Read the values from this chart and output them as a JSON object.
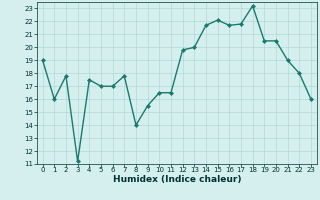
{
  "x": [
    0,
    1,
    2,
    3,
    4,
    5,
    6,
    7,
    8,
    9,
    10,
    11,
    12,
    13,
    14,
    15,
    16,
    17,
    18,
    19,
    20,
    21,
    22,
    23
  ],
  "y": [
    19,
    16,
    17.8,
    11.2,
    17.5,
    17,
    17,
    17.8,
    14,
    15.5,
    16.5,
    16.5,
    19.8,
    20.0,
    21.7,
    22.1,
    21.7,
    21.8,
    23.2,
    20.5,
    20.5,
    19,
    18,
    16
  ],
  "line_color": "#1a7a6e",
  "marker": "D",
  "marker_size": 2,
  "bg_color": "#d5eeee",
  "grid_color": "#b0d8d8",
  "xlabel": "Humidex (Indice chaleur)",
  "xlim": [
    -0.5,
    23.5
  ],
  "ylim": [
    11,
    23.5
  ],
  "yticks": [
    11,
    12,
    13,
    14,
    15,
    16,
    17,
    18,
    19,
    20,
    21,
    22,
    23
  ],
  "xticks": [
    0,
    1,
    2,
    3,
    4,
    5,
    6,
    7,
    8,
    9,
    10,
    11,
    12,
    13,
    14,
    15,
    16,
    17,
    18,
    19,
    20,
    21,
    22,
    23
  ],
  "tick_fontsize": 5.0,
  "xlabel_fontsize": 6.5,
  "tick_color": "#003333",
  "line_width": 1.0
}
